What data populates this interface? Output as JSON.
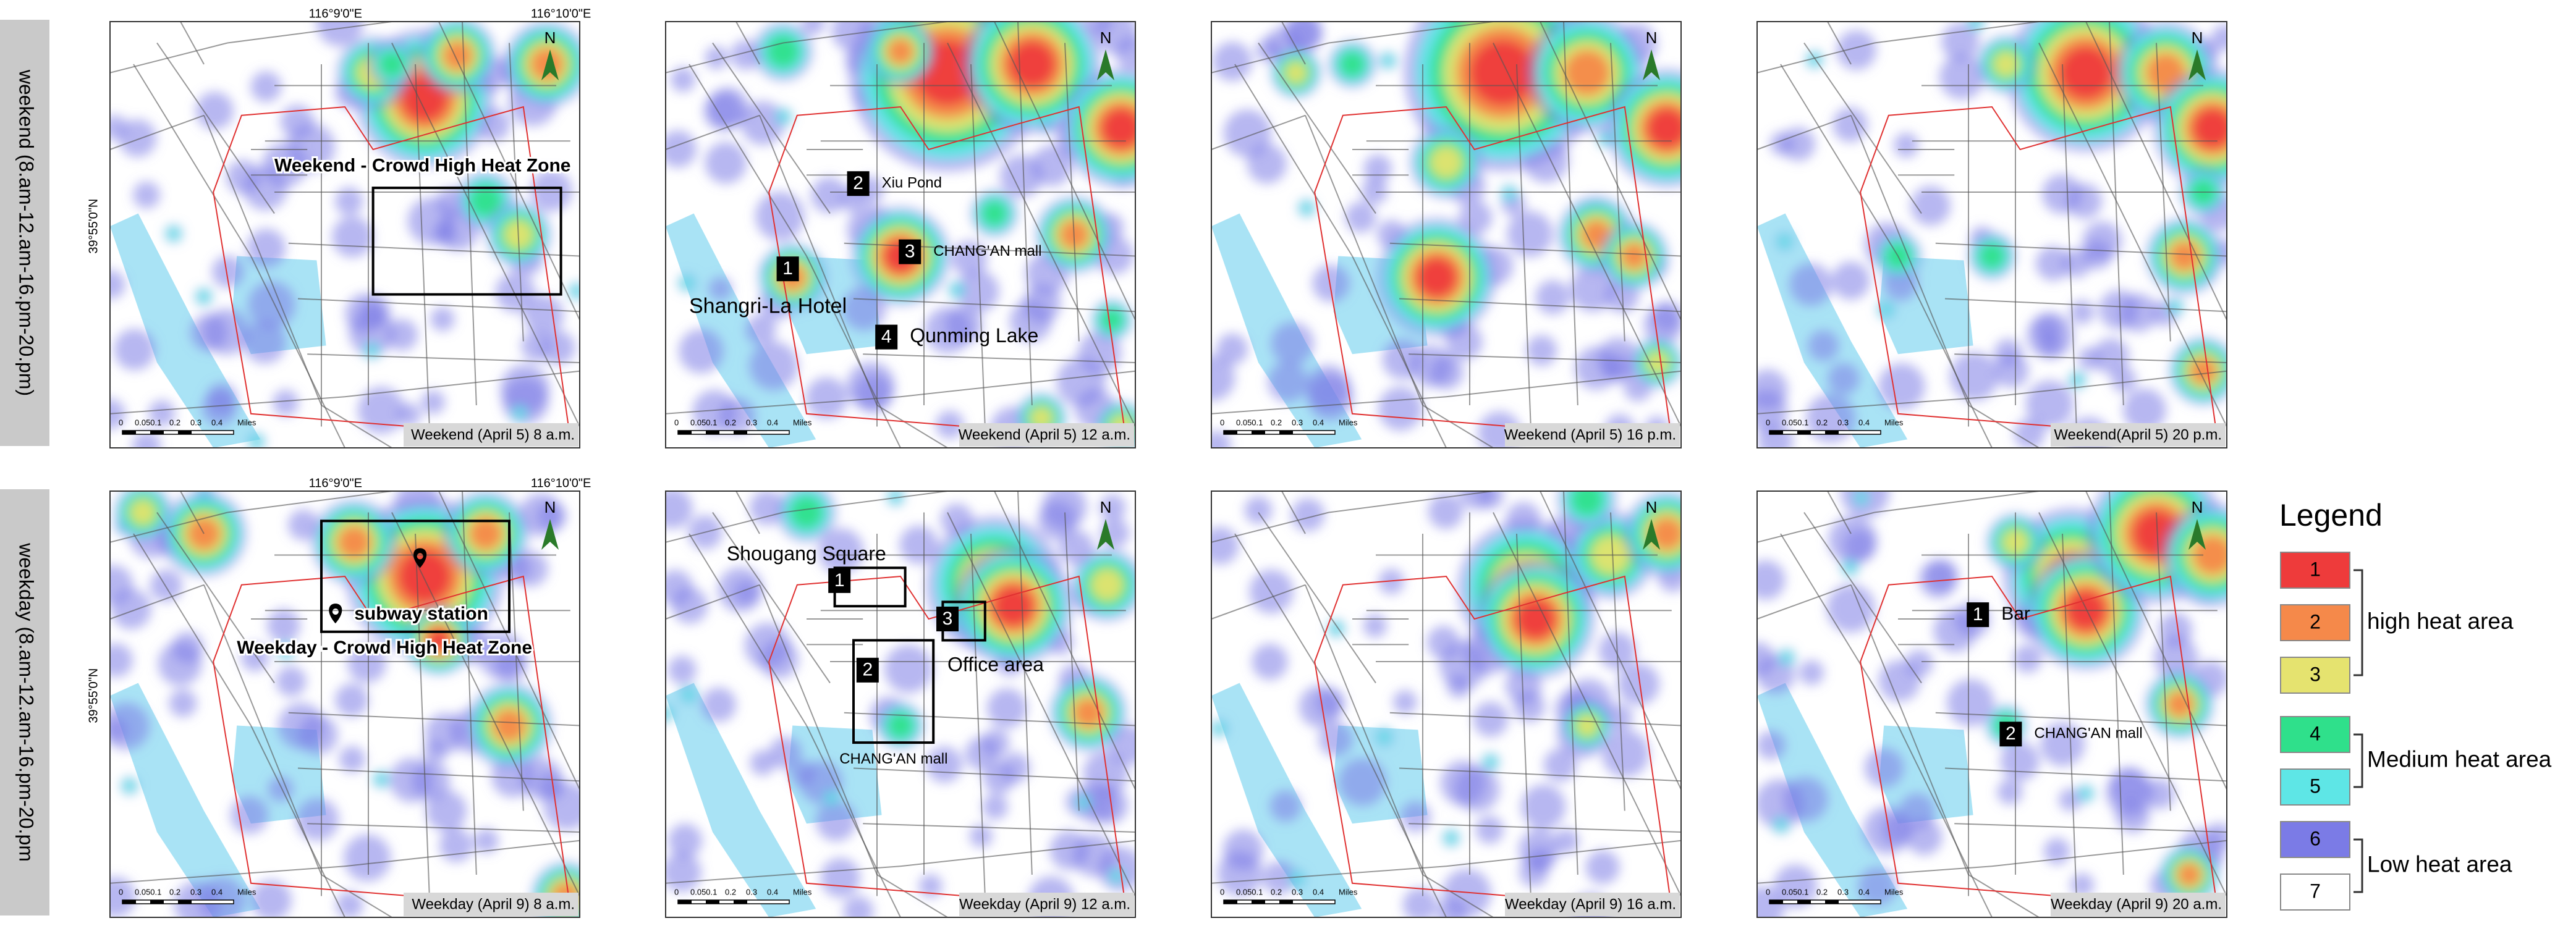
{
  "rows": [
    {
      "label": "weekend (8.am-12.am-16.pm-20.pm)"
    },
    {
      "label": "weekday (8.am-12.am-16.pm-20.pm"
    }
  ],
  "lon_labels": [
    "116°9'0\"E",
    "116°10'0\"E"
  ],
  "lat_label": "39°55'0\"N",
  "north": "N",
  "scale_labels": [
    "0",
    "0.050.1",
    "0.2",
    "0.3",
    "0.4",
    "Miles"
  ],
  "panels": [
    {
      "caption": "Weekend (April 5) 8 a.m.",
      "annotations": [
        {
          "text": "Weekend - Crowd High Heat Zone"
        }
      ]
    },
    {
      "caption": "Weekend (April 5) 12 a.m.",
      "annotations": [
        {
          "number": "2",
          "text": "Xiu Pond"
        },
        {
          "number": "3",
          "text": "CHANG'AN mall"
        },
        {
          "number": "1",
          "text": "Shangri-La Hotel"
        },
        {
          "number": "4",
          "text": "Qunming Lake"
        }
      ]
    },
    {
      "caption": "Weekend (April 5) 16 p.m.",
      "annotations": []
    },
    {
      "caption": "Weekend(April 5) 20 p.m.",
      "annotations": []
    },
    {
      "caption": "Weekday (April 9) 8 a.m.",
      "annotations": [
        {
          "text": "subway station"
        },
        {
          "text": "Weekday - Crowd High Heat Zone"
        }
      ]
    },
    {
      "caption": "Weekday (April 9) 12 a.m.",
      "annotations": [
        {
          "number": "1",
          "text": "Shougang Square"
        },
        {
          "number": "3",
          "text": "Office area"
        },
        {
          "number": "2",
          "text": "CHANG'AN mall"
        }
      ]
    },
    {
      "caption": "Weekday (April 9) 16 a.m.",
      "annotations": []
    },
    {
      "caption": "Weekday (April 9) 20 a.m.",
      "annotations": [
        {
          "number": "1",
          "text": "Bar"
        },
        {
          "number": "2",
          "text": "CHANG'AN mall"
        }
      ]
    }
  ],
  "legend": {
    "title": "Legend",
    "items": [
      {
        "label": "1",
        "color": "#ee3b3b"
      },
      {
        "label": "2",
        "color": "#f5894a"
      },
      {
        "label": "3",
        "color": "#e5e36f"
      },
      {
        "label": "4",
        "color": "#2fe08b"
      },
      {
        "label": "5",
        "color": "#5ee6e6"
      },
      {
        "label": "6",
        "color": "#7b7be6"
      },
      {
        "label": "7",
        "color": "#ffffff"
      }
    ],
    "groups": [
      "high heat area",
      "Medium heat area",
      "Low heat area"
    ]
  }
}
